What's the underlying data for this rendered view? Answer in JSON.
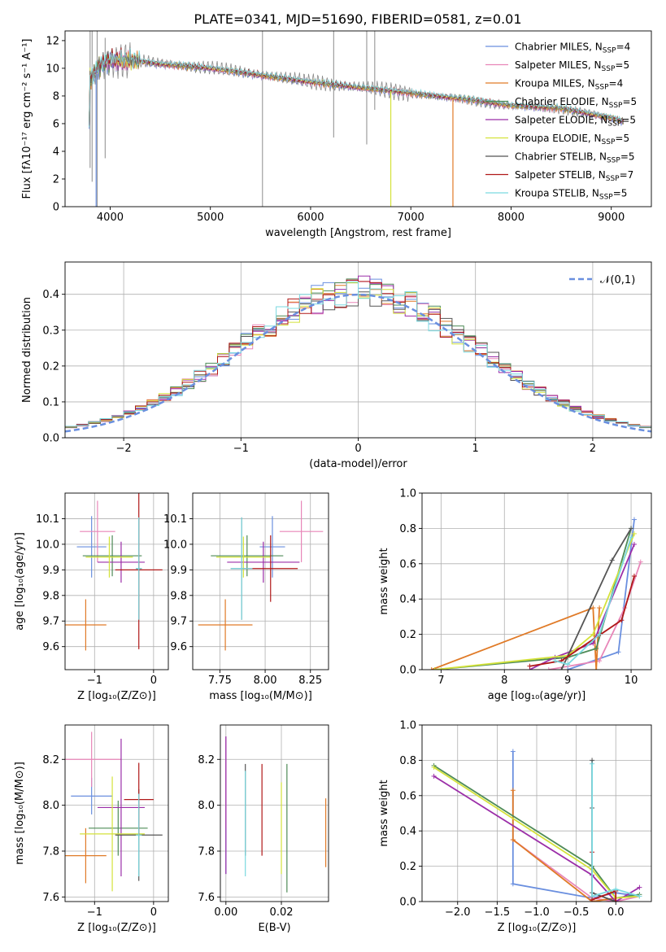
{
  "figure_title": "PLATE=0341, MJD=51690, FIBERID=0581, z=0.01",
  "colors": [
    "#6a8fdf",
    "#e886b8",
    "#e07a27",
    "#4e8b57",
    "#9b2ea8",
    "#d4e23a",
    "#555555",
    "#b01818",
    "#7ad9e0"
  ],
  "chart_data": [
    {
      "id": "spectrum",
      "type": "line",
      "title": "PLATE=0341, MJD=51690, FIBERID=0581, z=0.01",
      "xlabel": "wavelength [Angstrom, rest frame]",
      "ylabel": "Flux [fλ10⁻¹⁷ erg cm⁻² s⁻¹ A⁻¹]",
      "xlim": [
        3550,
        9400
      ],
      "ylim": [
        0,
        12.7
      ],
      "xticks": [
        4000,
        5000,
        6000,
        7000,
        8000,
        9000
      ],
      "yticks": [
        0,
        2,
        4,
        6,
        8,
        10,
        12
      ],
      "legend_position": "top-right",
      "series": [
        {
          "name": "Chabrier MILES, N_SSP=4"
        },
        {
          "name": "Salpeter MILES, N_SSP=5"
        },
        {
          "name": "Kroupa MILES, N_SSP=4"
        },
        {
          "name": "Chabrier ELODIE, N_SSP=5"
        },
        {
          "name": "Salpeter ELODIE, N_SSP=5"
        },
        {
          "name": "Kroupa ELODIE, N_SSP=5"
        },
        {
          "name": "Chabrier STELIB, N_SSP=5"
        },
        {
          "name": "Salpeter STELIB, N_SSP=7"
        },
        {
          "name": "Kroupa STELIB, N_SSP=5"
        }
      ],
      "continuum": {
        "x": [
          3800,
          3900,
          4000,
          4200,
          4500,
          5000,
          5500,
          6000,
          6500,
          7000,
          7500,
          8000,
          8500,
          9000,
          9100
        ],
        "y": [
          9.2,
          10.2,
          10.6,
          10.6,
          10.3,
          10.0,
          9.5,
          9.0,
          8.6,
          8.2,
          7.8,
          7.3,
          7.1,
          6.4,
          6.2
        ]
      },
      "data_spikes": [
        {
          "x": 3800,
          "y_top": 12.7,
          "y_bottom": 2.8
        },
        {
          "x": 3820,
          "y_top": 12.7,
          "y_bottom": 1.8
        },
        {
          "x": 3870,
          "y_top": 12.7,
          "y_bottom": 0
        },
        {
          "x": 3950,
          "y_top": 12.2,
          "y_bottom": 3.5
        },
        {
          "x": 5520,
          "y_top": 12.7,
          "y_bottom": 0
        },
        {
          "x": 6230,
          "y_top": 12.7,
          "y_bottom": 5.0
        },
        {
          "x": 6560,
          "y_top": 12.7,
          "y_bottom": 4.5
        },
        {
          "x": 6640,
          "y_top": 12.7,
          "y_bottom": 7.0
        }
      ],
      "model_drops": [
        {
          "series": 5,
          "x": 6800,
          "y_bottom": 0
        },
        {
          "series": 2,
          "x": 7420,
          "y_bottom": 0
        },
        {
          "series": 0,
          "x": 3860,
          "y_bottom": 0
        }
      ]
    },
    {
      "id": "residuals",
      "type": "step-histogram",
      "xlabel": "(data-model)/error",
      "ylabel": "Normed distribution",
      "xlim": [
        -2.5,
        2.5
      ],
      "ylim": [
        0,
        0.49
      ],
      "xticks": [
        -2,
        -1,
        0,
        1,
        2
      ],
      "yticks": [
        0,
        0.1,
        0.2,
        0.3,
        0.4
      ],
      "bin_width": 0.1,
      "legend": [
        {
          "name": "𝒩(0,1)",
          "style": "dashed"
        }
      ],
      "legend_position": "top-right",
      "gaussian": {
        "mu": 0,
        "sigma": 1
      }
    },
    {
      "id": "age_vs_Z",
      "type": "errorbar",
      "xlabel": "Z [log₁₀(Z/Z⊙)]",
      "ylabel": "age  [log₁₀(age/yr)]",
      "xlim": [
        -1.5,
        0.25
      ],
      "ylim": [
        9.51,
        10.2
      ],
      "xticks": [
        -1,
        0
      ],
      "yticks": [
        9.6,
        9.7,
        9.8,
        9.9,
        10.0,
        10.1
      ],
      "points": [
        {
          "x": -1.05,
          "xerr": 0.25,
          "y": 9.99,
          "yerr": 0.12
        },
        {
          "x": -0.95,
          "xerr": 0.3,
          "y": 10.05,
          "yerr": 0.12
        },
        {
          "x": -1.15,
          "xerr": 0.35,
          "y": 9.685,
          "yerr": 0.1
        },
        {
          "x": -0.7,
          "xerr": 0.5,
          "y": 9.955,
          "yerr": 0.08
        },
        {
          "x": -0.55,
          "xerr": 0.4,
          "y": 9.93,
          "yerr": 0.08
        },
        {
          "x": -0.75,
          "xerr": 0.4,
          "y": 9.95,
          "yerr": 0.08
        },
        {
          "x": -0.25,
          "xerr": 0.05,
          "y": 9.905,
          "yerr": 0.2
        },
        {
          "x": -0.25,
          "xerr": 0.4,
          "y": 9.9,
          "yerr": 0.31
        },
        {
          "x": -0.25,
          "xerr": 0.05,
          "y": 9.905,
          "yerr": 0.2
        }
      ]
    },
    {
      "id": "age_vs_mass",
      "type": "errorbar",
      "xlabel": "mass [log₁₀(M/M⊙)]",
      "ylabel": "",
      "xlim": [
        7.6,
        8.35
      ],
      "ylim": [
        9.51,
        10.2
      ],
      "xticks": [
        7.75,
        8.0,
        8.25
      ],
      "yticks": [
        9.6,
        9.7,
        9.8,
        9.9,
        10.0,
        10.1
      ],
      "points": [
        {
          "x": 8.04,
          "xerr": 0.07,
          "y": 9.99,
          "yerr": 0.12
        },
        {
          "x": 8.2,
          "xerr": 0.12,
          "y": 10.05,
          "yerr": 0.12
        },
        {
          "x": 7.78,
          "xerr": 0.15,
          "y": 9.685,
          "yerr": 0.1
        },
        {
          "x": 7.9,
          "xerr": 0.2,
          "y": 9.955,
          "yerr": 0.08
        },
        {
          "x": 7.99,
          "xerr": 0.2,
          "y": 9.93,
          "yerr": 0.08
        },
        {
          "x": 7.88,
          "xerr": 0.15,
          "y": 9.95,
          "yerr": 0.08
        },
        {
          "x": 7.87,
          "xerr": 0.06,
          "y": 9.905,
          "yerr": 0.2
        },
        {
          "x": 8.03,
          "xerr": 0.15,
          "y": 9.905,
          "yerr": 0.13
        },
        {
          "x": 7.87,
          "xerr": 0.06,
          "y": 9.905,
          "yerr": 0.2
        }
      ]
    },
    {
      "id": "weight_vs_age",
      "type": "line",
      "xlabel": "age  [log₁₀(age/yr)]",
      "ylabel": "mass weight",
      "xlim": [
        6.7,
        10.32
      ],
      "ylim": [
        0,
        1.0
      ],
      "xticks": [
        7,
        8,
        9,
        10
      ],
      "yticks": [
        0,
        0.2,
        0.4,
        0.6,
        0.8,
        1.0
      ],
      "series": [
        {
          "x": [
            9.0,
            9.8,
            10.05
          ],
          "y": [
            0.0,
            0.1,
            0.85
          ]
        },
        {
          "x": [
            8.7,
            9.5,
            9.9,
            10.15
          ],
          "y": [
            0.0,
            0.05,
            0.35,
            0.61
          ]
        },
        {
          "x": [
            6.85,
            9.4,
            9.45,
            9.5
          ],
          "y": [
            0.0,
            0.35,
            0.0,
            0.35
          ]
        },
        {
          "x": [
            6.9,
            9.0,
            9.45,
            10.0
          ],
          "y": [
            0.0,
            0.07,
            0.12,
            0.8
          ]
        },
        {
          "x": [
            8.4,
            8.8,
            9.4,
            10.05
          ],
          "y": [
            0.0,
            0.07,
            0.15,
            0.71
          ]
        },
        {
          "x": [
            6.9,
            9.0,
            9.4,
            10.05
          ],
          "y": [
            0.0,
            0.08,
            0.2,
            0.77
          ]
        },
        {
          "x": [
            8.9,
            9.7,
            10.0
          ],
          "y": [
            0.0,
            0.62,
            0.8
          ]
        },
        {
          "x": [
            8.4,
            8.9,
            9.85,
            10.05
          ],
          "y": [
            0.02,
            0.05,
            0.28,
            0.53
          ]
        },
        {
          "x": [
            8.8,
            9.0,
            9.5,
            10.0
          ],
          "y": [
            0.05,
            0.03,
            0.2,
            0.75
          ]
        }
      ]
    },
    {
      "id": "mass_vs_Z",
      "type": "errorbar",
      "xlabel": "Z [log₁₀(Z/Z⊙)]",
      "ylabel": "mass [log₁₀(M/M⊙)]",
      "xlim": [
        -1.5,
        0.25
      ],
      "ylim": [
        7.58,
        8.35
      ],
      "xticks": [
        -1,
        0
      ],
      "yticks": [
        7.6,
        7.8,
        8.0,
        8.2
      ],
      "points": [
        {
          "x": -1.05,
          "xerr": 0.35,
          "y": 8.04,
          "yerr": 0.08
        },
        {
          "x": -1.05,
          "xerr": 0.5,
          "y": 8.2,
          "yerr": 0.12
        },
        {
          "x": -1.15,
          "xerr": 0.35,
          "y": 7.78,
          "yerr": 0.12
        },
        {
          "x": -0.6,
          "xerr": 0.5,
          "y": 7.9,
          "yerr": 0.12
        },
        {
          "x": -0.55,
          "xerr": 0.4,
          "y": 7.99,
          "yerr": 0.3
        },
        {
          "x": -0.7,
          "xerr": 0.55,
          "y": 7.875,
          "yerr": 0.25
        },
        {
          "x": -0.25,
          "xerr": 0.4,
          "y": 7.87,
          "yerr": 0.2
        },
        {
          "x": -0.25,
          "xerr": 0.25,
          "y": 8.025,
          "yerr": 0.16
        },
        {
          "x": -0.25,
          "xerr": 0.05,
          "y": 7.87,
          "yerr": 0.18
        }
      ]
    },
    {
      "id": "mass_vs_EBV",
      "type": "errorbar",
      "xlabel": "E(B-V)",
      "ylabel": "",
      "xlim": [
        -0.002,
        0.037
      ],
      "ylim": [
        7.58,
        8.35
      ],
      "xticks": [
        0.0,
        0.02
      ],
      "yticks": [
        7.6,
        7.8,
        8.0,
        8.2
      ],
      "points": [
        {
          "x": 0.0,
          "xerr": 0,
          "y": 8.0,
          "yerr": 0.3
        },
        {
          "x": 0.0,
          "xerr": 0,
          "y": 8.1,
          "yerr": 0.2
        },
        {
          "x": 0.036,
          "xerr": 0,
          "y": 7.88,
          "yerr": 0.15
        },
        {
          "x": 0.022,
          "xerr": 0,
          "y": 7.9,
          "yerr": 0.28
        },
        {
          "x": 0.0,
          "xerr": 0,
          "y": 8.0,
          "yerr": 0.3
        },
        {
          "x": 0.02,
          "xerr": 0,
          "y": 7.9,
          "yerr": 0.2
        },
        {
          "x": 0.007,
          "xerr": 0,
          "y": 7.98,
          "yerr": 0.2
        },
        {
          "x": 0.013,
          "xerr": 0,
          "y": 7.98,
          "yerr": 0.2
        },
        {
          "x": 0.007,
          "xerr": 0,
          "y": 7.92,
          "yerr": 0.23
        }
      ]
    },
    {
      "id": "weight_vs_Z",
      "type": "line",
      "xlabel": "Z [log₁₀(Z/Z⊙)]",
      "ylabel": "mass weight",
      "xlim": [
        -2.45,
        0.45
      ],
      "ylim": [
        0,
        1.0
      ],
      "xticks": [
        -2.0,
        -1.5,
        -1.0,
        -0.5,
        0.0
      ],
      "yticks": [
        0,
        0.2,
        0.4,
        0.6,
        0.8,
        1.0
      ],
      "series": [
        {
          "x": [
            -1.3,
            -1.3,
            -0.3,
            0.0,
            0.3
          ],
          "y": [
            0.85,
            0.1,
            0.02,
            0.05,
            0.03
          ]
        },
        {
          "x": [
            -1.3,
            -0.3,
            0.0,
            0.3
          ],
          "y": [
            0.35,
            0.02,
            0.0,
            0.03
          ]
        },
        {
          "x": [
            -1.3,
            -1.3,
            -0.3,
            0.0
          ],
          "y": [
            0.63,
            0.35,
            0.0,
            0.02
          ]
        },
        {
          "x": [
            -2.3,
            -0.3,
            0.0,
            0.3
          ],
          "y": [
            0.77,
            0.2,
            0.02,
            0.04
          ]
        },
        {
          "x": [
            -2.3,
            -0.3,
            0.0,
            0.3
          ],
          "y": [
            0.71,
            0.15,
            0.0,
            0.08
          ]
        },
        {
          "x": [
            -2.3,
            -0.3,
            0.0,
            0.3
          ],
          "y": [
            0.76,
            0.18,
            0.02,
            0.03
          ]
        },
        {
          "x": [
            -0.3,
            -0.3,
            -0.3,
            0.0
          ],
          "y": [
            0.8,
            0.53,
            0.05,
            0.0
          ]
        },
        {
          "x": [
            -0.3,
            -0.3,
            0.0,
            0.0
          ],
          "y": [
            0.28,
            0.01,
            0.06,
            0.0
          ]
        },
        {
          "x": [
            -0.3,
            -0.3,
            0.0,
            0.3
          ],
          "y": [
            0.78,
            0.03,
            0.07,
            0.03
          ]
        }
      ]
    }
  ]
}
